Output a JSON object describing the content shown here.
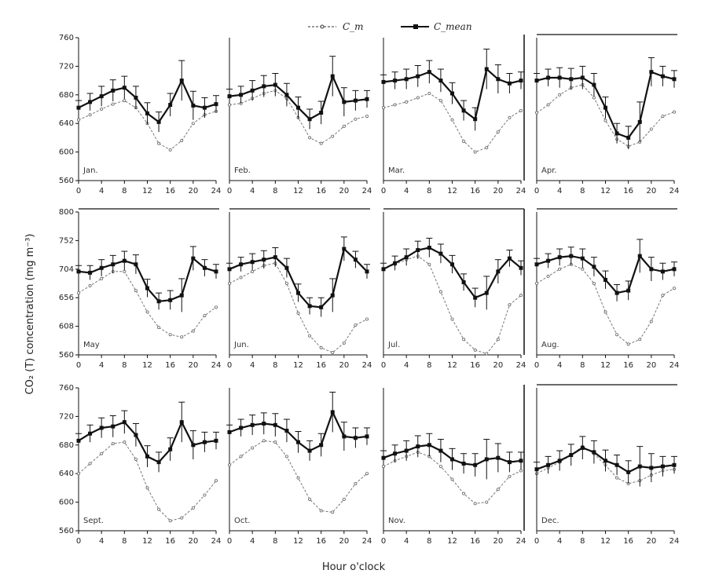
{
  "figure": {
    "legend": {
      "series_a": "C_m",
      "series_b": "C_mean"
    },
    "ylabel": "CO₂ (T) concentration (mg m⁻³)",
    "xlabel": "Hour o'clock"
  },
  "chart_data": [
    {
      "type": "line",
      "month": "Jan.",
      "ylim": [
        560,
        760
      ],
      "yticks": [
        560,
        600,
        640,
        680,
        720,
        760
      ],
      "xlim": [
        0,
        24
      ],
      "xticks": [
        0,
        4,
        8,
        12,
        16,
        20,
        24
      ],
      "x": [
        0,
        2,
        4,
        6,
        8,
        10,
        12,
        14,
        16,
        18,
        20,
        22,
        24
      ],
      "series": [
        {
          "name": "C_m",
          "values": [
            645,
            652,
            660,
            667,
            672,
            662,
            640,
            612,
            603,
            616,
            640,
            652,
            657
          ],
          "color": "#777777",
          "dashed": true
        },
        {
          "name": "C_mean",
          "values": [
            662,
            670,
            678,
            686,
            690,
            676,
            654,
            642,
            666,
            700,
            665,
            662,
            667
          ],
          "color": "#111111",
          "errors": [
            10,
            12,
            14,
            15,
            16,
            16,
            15,
            14,
            16,
            28,
            20,
            14,
            12
          ]
        }
      ]
    },
    {
      "type": "line",
      "month": "Feb.",
      "ylim": [
        560,
        760
      ],
      "yticks": [
        560,
        600,
        640,
        680,
        720,
        760
      ],
      "xlim": [
        0,
        24
      ],
      "xticks": [
        0,
        4,
        8,
        12,
        16,
        20,
        24
      ],
      "x": [
        0,
        2,
        4,
        6,
        8,
        10,
        12,
        14,
        16,
        18,
        20,
        22,
        24
      ],
      "series": [
        {
          "name": "C_m",
          "values": [
            666,
            668,
            675,
            682,
            686,
            675,
            648,
            620,
            612,
            622,
            636,
            646,
            650
          ],
          "color": "#777777",
          "dashed": true
        },
        {
          "name": "C_mean",
          "values": [
            678,
            680,
            686,
            692,
            694,
            680,
            662,
            646,
            655,
            706,
            670,
            672,
            674
          ],
          "color": "#111111",
          "errors": [
            10,
            12,
            14,
            15,
            16,
            16,
            15,
            14,
            16,
            28,
            20,
            14,
            12
          ]
        }
      ]
    },
    {
      "type": "line",
      "month": "Mar.",
      "ylim": [
        560,
        760
      ],
      "yticks": [
        560,
        600,
        640,
        680,
        720,
        760
      ],
      "xlim": [
        0,
        24
      ],
      "xticks": [
        0,
        4,
        8,
        12,
        16,
        20,
        24
      ],
      "x": [
        0,
        2,
        4,
        6,
        8,
        10,
        12,
        14,
        16,
        18,
        20,
        22,
        24
      ],
      "series": [
        {
          "name": "C_m",
          "values": [
            662,
            666,
            670,
            676,
            682,
            672,
            645,
            615,
            600,
            606,
            628,
            648,
            658
          ],
          "color": "#777777",
          "dashed": true
        },
        {
          "name": "C_mean",
          "values": [
            698,
            700,
            702,
            706,
            712,
            700,
            682,
            658,
            646,
            716,
            702,
            696,
            700
          ],
          "color": "#111111",
          "errors": [
            10,
            12,
            14,
            15,
            16,
            16,
            15,
            14,
            16,
            28,
            20,
            14,
            12
          ]
        }
      ]
    },
    {
      "type": "line",
      "month": "Apr.",
      "ylim": [
        560,
        760
      ],
      "yticks": [
        560,
        600,
        640,
        680,
        720,
        760
      ],
      "xlim": [
        0,
        24
      ],
      "xticks": [
        0,
        4,
        8,
        12,
        16,
        20,
        24
      ],
      "x": [
        0,
        2,
        4,
        6,
        8,
        10,
        12,
        14,
        16,
        18,
        20,
        22,
        24
      ],
      "series": [
        {
          "name": "C_m",
          "values": [
            655,
            666,
            680,
            690,
            694,
            676,
            644,
            618,
            608,
            614,
            632,
            650,
            656
          ],
          "color": "#777777",
          "dashed": true
        },
        {
          "name": "C_mean",
          "values": [
            700,
            704,
            704,
            702,
            704,
            694,
            662,
            626,
            620,
            642,
            712,
            706,
            702
          ],
          "color": "#111111",
          "errors": [
            10,
            12,
            14,
            15,
            16,
            16,
            15,
            14,
            16,
            28,
            20,
            14,
            12
          ]
        }
      ]
    },
    {
      "type": "line",
      "month": "May",
      "ylim": [
        560,
        800
      ],
      "yticks": [
        560,
        608,
        656,
        704,
        752,
        800
      ],
      "xlim": [
        0,
        24
      ],
      "xticks": [
        0,
        4,
        8,
        12,
        16,
        20,
        24
      ],
      "x": [
        0,
        2,
        4,
        6,
        8,
        10,
        12,
        14,
        16,
        18,
        20,
        22,
        24
      ],
      "series": [
        {
          "name": "C_m",
          "values": [
            664,
            676,
            688,
            700,
            700,
            668,
            632,
            606,
            594,
            590,
            600,
            626,
            640
          ],
          "color": "#777777",
          "dashed": true
        },
        {
          "name": "C_mean",
          "values": [
            700,
            698,
            706,
            712,
            718,
            712,
            672,
            650,
            652,
            660,
            722,
            706,
            700
          ],
          "color": "#111111",
          "errors": [
            10,
            12,
            14,
            15,
            16,
            16,
            15,
            14,
            16,
            28,
            20,
            14,
            12
          ]
        }
      ]
    },
    {
      "type": "line",
      "month": "Jun.",
      "ylim": [
        560,
        800
      ],
      "yticks": [
        560,
        608,
        656,
        704,
        752,
        800
      ],
      "xlim": [
        0,
        24
      ],
      "xticks": [
        0,
        4,
        8,
        12,
        16,
        20,
        24
      ],
      "x": [
        0,
        2,
        4,
        6,
        8,
        10,
        12,
        14,
        16,
        18,
        20,
        22,
        24
      ],
      "series": [
        {
          "name": "C_m",
          "values": [
            680,
            690,
            700,
            710,
            714,
            680,
            630,
            592,
            572,
            564,
            580,
            610,
            620
          ],
          "color": "#777777",
          "dashed": true
        },
        {
          "name": "C_mean",
          "values": [
            704,
            712,
            716,
            720,
            724,
            706,
            664,
            642,
            640,
            660,
            738,
            720,
            700
          ],
          "color": "#111111",
          "errors": [
            10,
            12,
            14,
            15,
            16,
            16,
            15,
            14,
            16,
            28,
            20,
            14,
            12
          ]
        }
      ]
    },
    {
      "type": "line",
      "month": "Jul.",
      "ylim": [
        560,
        800
      ],
      "yticks": [
        560,
        608,
        656,
        704,
        752,
        800
      ],
      "xlim": [
        0,
        24
      ],
      "xticks": [
        0,
        4,
        8,
        12,
        16,
        20,
        24
      ],
      "x": [
        0,
        2,
        4,
        6,
        8,
        10,
        12,
        14,
        16,
        18,
        20,
        22,
        24
      ],
      "series": [
        {
          "name": "C_m",
          "values": [
            704,
            712,
            720,
            726,
            712,
            666,
            620,
            586,
            568,
            562,
            586,
            644,
            660
          ],
          "color": "#777777",
          "dashed": true
        },
        {
          "name": "C_mean",
          "values": [
            704,
            714,
            724,
            736,
            740,
            730,
            712,
            682,
            656,
            664,
            700,
            722,
            706
          ],
          "color": "#111111",
          "errors": [
            10,
            12,
            14,
            15,
            16,
            16,
            15,
            14,
            16,
            28,
            20,
            14,
            12
          ]
        }
      ]
    },
    {
      "type": "line",
      "month": "Aug.",
      "ylim": [
        560,
        800
      ],
      "yticks": [
        560,
        608,
        656,
        704,
        752,
        800
      ],
      "xlim": [
        0,
        24
      ],
      "xticks": [
        0,
        4,
        8,
        12,
        16,
        20,
        24
      ],
      "x": [
        0,
        2,
        4,
        6,
        8,
        10,
        12,
        14,
        16,
        18,
        20,
        22,
        24
      ],
      "series": [
        {
          "name": "C_m",
          "values": [
            680,
            692,
            704,
            712,
            704,
            680,
            632,
            594,
            578,
            586,
            616,
            660,
            672
          ],
          "color": "#777777",
          "dashed": true
        },
        {
          "name": "C_mean",
          "values": [
            712,
            718,
            724,
            726,
            722,
            708,
            686,
            664,
            668,
            726,
            704,
            700,
            704
          ],
          "color": "#111111",
          "errors": [
            10,
            12,
            14,
            15,
            16,
            16,
            15,
            14,
            16,
            28,
            20,
            14,
            12
          ]
        }
      ]
    },
    {
      "type": "line",
      "month": "Sept.",
      "ylim": [
        560,
        760
      ],
      "yticks": [
        560,
        600,
        640,
        680,
        720,
        760
      ],
      "xlim": [
        0,
        24
      ],
      "xticks": [
        0,
        4,
        8,
        12,
        16,
        20,
        24
      ],
      "x": [
        0,
        2,
        4,
        6,
        8,
        10,
        12,
        14,
        16,
        18,
        20,
        22,
        24
      ],
      "series": [
        {
          "name": "C_m",
          "values": [
            640,
            654,
            668,
            682,
            684,
            660,
            620,
            590,
            574,
            578,
            592,
            610,
            630
          ],
          "color": "#777777",
          "dashed": true
        },
        {
          "name": "C_mean",
          "values": [
            686,
            696,
            704,
            706,
            712,
            694,
            664,
            656,
            674,
            712,
            680,
            684,
            686
          ],
          "color": "#111111",
          "errors": [
            10,
            12,
            14,
            15,
            16,
            16,
            15,
            14,
            16,
            28,
            20,
            14,
            12
          ]
        }
      ]
    },
    {
      "type": "line",
      "month": "Oct.",
      "ylim": [
        560,
        760
      ],
      "yticks": [
        560,
        600,
        640,
        680,
        720,
        760
      ],
      "xlim": [
        0,
        24
      ],
      "xticks": [
        0,
        4,
        8,
        12,
        16,
        20,
        24
      ],
      "x": [
        0,
        2,
        4,
        6,
        8,
        10,
        12,
        14,
        16,
        18,
        20,
        22,
        24
      ],
      "series": [
        {
          "name": "C_m",
          "values": [
            652,
            664,
            676,
            686,
            684,
            664,
            634,
            604,
            588,
            586,
            604,
            626,
            640
          ],
          "color": "#777777",
          "dashed": true
        },
        {
          "name": "C_mean",
          "values": [
            698,
            704,
            708,
            710,
            708,
            700,
            684,
            672,
            680,
            726,
            692,
            690,
            692
          ],
          "color": "#111111",
          "errors": [
            10,
            12,
            14,
            15,
            16,
            16,
            15,
            14,
            16,
            28,
            20,
            14,
            12
          ]
        }
      ]
    },
    {
      "type": "line",
      "month": "Nov.",
      "ylim": [
        560,
        760
      ],
      "yticks": [
        560,
        600,
        640,
        680,
        720,
        760
      ],
      "xlim": [
        0,
        24
      ],
      "xticks": [
        0,
        4,
        8,
        12,
        16,
        20,
        24
      ],
      "x": [
        0,
        2,
        4,
        6,
        8,
        10,
        12,
        14,
        16,
        18,
        20,
        22,
        24
      ],
      "series": [
        {
          "name": "C_m",
          "values": [
            650,
            658,
            664,
            670,
            664,
            650,
            632,
            612,
            598,
            600,
            618,
            636,
            644
          ],
          "color": "#777777",
          "dashed": true
        },
        {
          "name": "C_mean",
          "values": [
            662,
            668,
            672,
            678,
            680,
            672,
            660,
            654,
            652,
            660,
            662,
            656,
            658
          ],
          "color": "#111111",
          "errors": [
            10,
            12,
            14,
            15,
            16,
            16,
            15,
            14,
            16,
            28,
            20,
            14,
            12
          ]
        }
      ]
    },
    {
      "type": "line",
      "month": "Dec.",
      "ylim": [
        560,
        760
      ],
      "yticks": [
        560,
        600,
        640,
        680,
        720,
        760
      ],
      "xlim": [
        0,
        24
      ],
      "xticks": [
        0,
        4,
        8,
        12,
        16,
        20,
        24
      ],
      "x": [
        0,
        2,
        4,
        6,
        8,
        10,
        12,
        14,
        16,
        18,
        20,
        22,
        24
      ],
      "series": [
        {
          "name": "C_m",
          "values": [
            640,
            648,
            656,
            666,
            678,
            668,
            652,
            634,
            626,
            630,
            638,
            644,
            646
          ],
          "color": "#777777",
          "dashed": true
        },
        {
          "name": "C_mean",
          "values": [
            646,
            652,
            658,
            666,
            676,
            670,
            658,
            652,
            642,
            650,
            648,
            650,
            652
          ],
          "color": "#111111",
          "errors": [
            10,
            12,
            14,
            15,
            16,
            16,
            15,
            14,
            16,
            28,
            20,
            14,
            12
          ]
        }
      ]
    }
  ]
}
